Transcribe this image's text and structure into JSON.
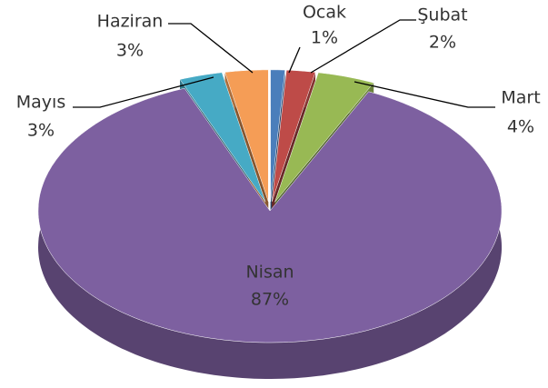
{
  "chart_data": {
    "type": "pie",
    "categories": [
      "Ocak",
      "Şubat",
      "Mart",
      "Nisan",
      "Mayıs",
      "Haziran"
    ],
    "values": [
      1,
      2,
      4,
      87,
      3,
      3
    ],
    "value_labels": [
      "1%",
      "2%",
      "4%",
      "87%",
      "3%",
      "3%"
    ],
    "colors": [
      "#4a7ebb",
      "#be4b48",
      "#98b954",
      "#7d60a0",
      "#46aac5",
      "#f59d56"
    ]
  }
}
